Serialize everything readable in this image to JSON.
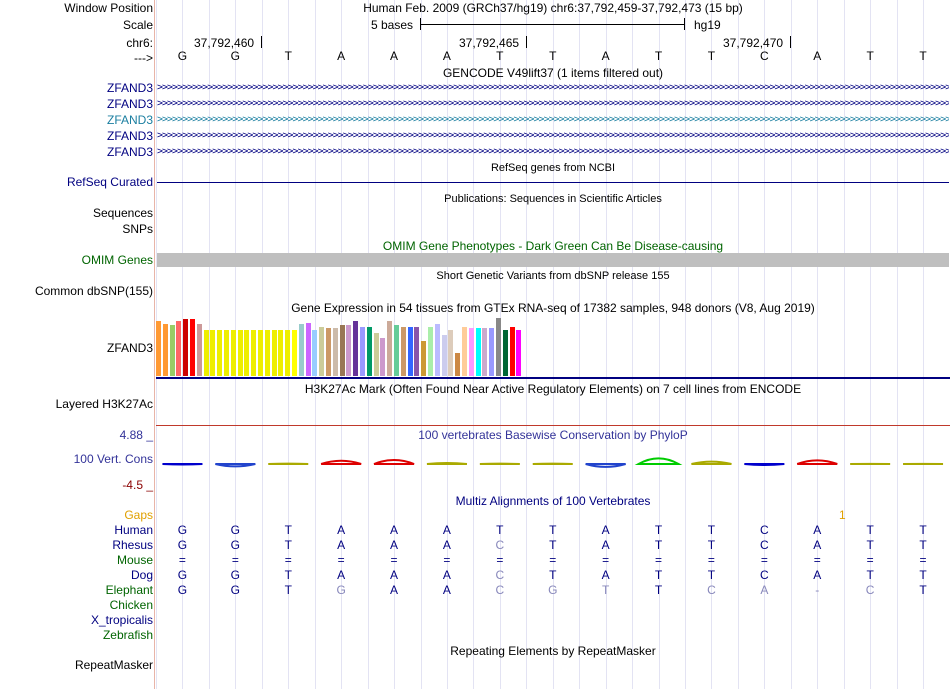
{
  "header": {
    "window_position_label": "Window Position",
    "window_position_text": "Human Feb. 2009 (GRCh37/hg19)   chr6:37,792,459-37,792,473 (15 bp)",
    "scale_label": "Scale",
    "scale_text": "5 bases",
    "scale_assembly": "hg19",
    "chrom_label": "chr6:",
    "coords": [
      "37,792,460",
      "37,792,465",
      "37,792,470"
    ],
    "strand_label": "--->"
  },
  "sequence": [
    "G",
    "G",
    "T",
    "A",
    "A",
    "A",
    "T",
    "T",
    "A",
    "T",
    "T",
    "C",
    "A",
    "T",
    "T"
  ],
  "gencode": {
    "title": "GENCODE V49lift37 (1 items filtered out)",
    "labels": [
      "ZFAND3",
      "ZFAND3",
      "ZFAND3",
      "ZFAND3",
      "ZFAND3"
    ],
    "colors": [
      "#000080",
      "#000080",
      "#1a7ea0",
      "#000080",
      "#000080"
    ]
  },
  "refseq": {
    "title": "RefSeq genes from NCBI",
    "label": "RefSeq Curated"
  },
  "publications": {
    "title": "Publications: Sequences in Scientific Articles",
    "labels": [
      "Sequences",
      "SNPs"
    ]
  },
  "omim": {
    "title": "OMIM Gene Phenotypes - Dark Green Can Be Disease-causing",
    "label": "OMIM Genes"
  },
  "dbsnp": {
    "title": "Short Genetic Variants from dbSNP release 155",
    "label": "Common dbSNP(155)"
  },
  "gtex": {
    "title": "Gene Expression in 54 tissues from GTEx RNA-seq of 17382 samples, 948 donors (V8, Aug 2019)",
    "label": "ZFAND3",
    "values": [
      0.95,
      0.9,
      0.88,
      0.95,
      0.98,
      0.98,
      0.9,
      0.8,
      0.8,
      0.8,
      0.8,
      0.8,
      0.8,
      0.8,
      0.8,
      0.8,
      0.8,
      0.8,
      0.8,
      0.8,
      0.8,
      0.9,
      0.92,
      0.8,
      0.85,
      0.82,
      0.82,
      0.88,
      0.88,
      0.95,
      0.85,
      0.85,
      0.75,
      0.65,
      0.95,
      0.88,
      0.85,
      0.85,
      0.85,
      0.6,
      0.85,
      0.9,
      0.7,
      0.8,
      0.4,
      0.85,
      0.83,
      0.83,
      0.83,
      0.83,
      1.0,
      0.8,
      0.85,
      0.8
    ],
    "colors": [
      "#ff9933",
      "#ff9933",
      "#99cc66",
      "#ff6666",
      "#cc0000",
      "#ff0000",
      "#cc9999",
      "#eeee00",
      "#eeee00",
      "#eeee00",
      "#eeee00",
      "#eeee00",
      "#eeee00",
      "#eeee00",
      "#eeee00",
      "#eeee00",
      "#eeee00",
      "#eeee00",
      "#eeee00",
      "#eeee00",
      "#ffff00",
      "#99cccc",
      "#cc66ff",
      "#99ccff",
      "#cccc99",
      "#cc9966",
      "#ccbbaa",
      "#997755",
      "#cc99cc",
      "#663399",
      "#9999ff",
      "#009966",
      "#cccc99",
      "#cc99cc",
      "#ccaa99",
      "#66cc99",
      "#cc9966",
      "#3366ff",
      "#8855aa",
      "#cc9933",
      "#aaeeaa",
      "#bbbbff",
      "#ccccee",
      "#ddccbb",
      "#cc8844",
      "#ffcc99",
      "#ff99ff",
      "#00ffff",
      "#ccaacc",
      "#9999ff",
      "#888888",
      "#006633",
      "#ff0000",
      "#ff00ff"
    ]
  },
  "h3k27ac": {
    "title": "H3K27Ac Mark (Often Found Near Active Regulatory Elements) on 7 cell lines from ENCODE",
    "label": "Layered H3K27Ac"
  },
  "conservation": {
    "title": "100 vertebrates Basewise Conservation by PhyloP",
    "label": "100 Vert. Cons",
    "max_label": "4.88 _",
    "min_label": "-4.5 _",
    "values": [
      -0.3,
      -1.5,
      0.2,
      2.0,
      2.5,
      0.6,
      0.2,
      0.2,
      -1.8,
      3.5,
      1.5,
      -0.6,
      2.3,
      0.1,
      0.1
    ]
  },
  "multiz": {
    "title": "Multiz Alignments of 100 Vertebrates",
    "gaps_label": "Gaps",
    "gaps_mark": "1",
    "species": [
      {
        "name": "Human",
        "color": "#000080",
        "row": [
          "G",
          "G",
          "T",
          "A",
          "A",
          "A",
          "T",
          "T",
          "A",
          "T",
          "T",
          "C",
          "A",
          "T",
          "T"
        ]
      },
      {
        "name": "Rhesus",
        "color": "#000080",
        "row": [
          "G",
          "G",
          "T",
          "A",
          "A",
          "A",
          "C",
          "T",
          "A",
          "T",
          "T",
          "C",
          "A",
          "T",
          "T"
        ]
      },
      {
        "name": "Mouse",
        "color": "#006400",
        "row": [
          "=",
          "=",
          "=",
          "=",
          "=",
          "=",
          "=",
          "=",
          "=",
          "=",
          "=",
          "=",
          "=",
          "=",
          "="
        ]
      },
      {
        "name": "Dog",
        "color": "#000080",
        "row": [
          "G",
          "G",
          "T",
          "A",
          "A",
          "A",
          "C",
          "T",
          "A",
          "T",
          "T",
          "C",
          "A",
          "T",
          "T"
        ]
      },
      {
        "name": "Elephant",
        "color": "#006400",
        "row": [
          "G",
          "G",
          "T",
          "G",
          "A",
          "A",
          "C",
          "G",
          "T",
          "T",
          "C",
          "A",
          "-",
          "C",
          "T"
        ]
      },
      {
        "name": "Chicken",
        "color": "#006400",
        "row": []
      },
      {
        "name": "X_tropicalis",
        "color": "#000080",
        "row": []
      },
      {
        "name": "Zebrafish",
        "color": "#006400",
        "row": []
      }
    ]
  },
  "repeatmasker": {
    "title": "Repeating Elements by RepeatMasker",
    "label": "RepeatMasker"
  }
}
